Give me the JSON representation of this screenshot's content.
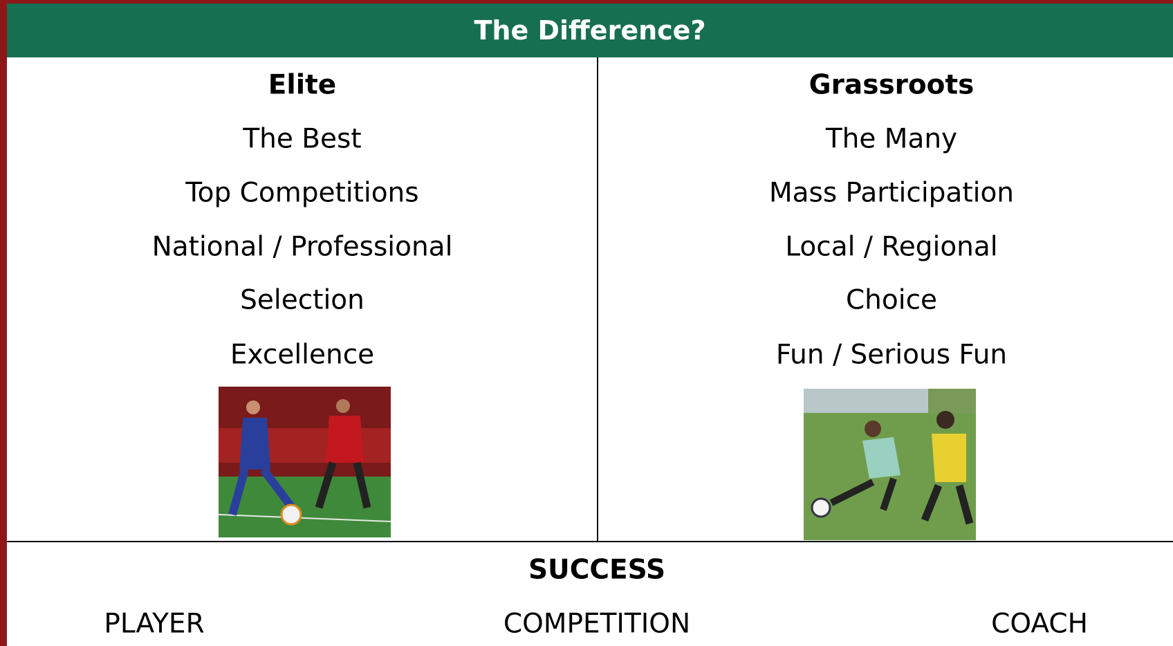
{
  "header": {
    "title": "The Difference?"
  },
  "columns": [
    {
      "heading": "Elite",
      "items": [
        "The Best",
        "Top Competitions",
        "National / Professional",
        "Selection",
        "Excellence"
      ]
    },
    {
      "heading": "Grassroots",
      "items": [
        "The Many",
        "Mass Participation",
        "Local / Regional",
        "Choice",
        "Fun / Serious Fun"
      ]
    }
  ],
  "footer": {
    "heading": "SUCCESS",
    "items": [
      "PLAYER",
      "COMPETITION",
      "COACH"
    ]
  }
}
